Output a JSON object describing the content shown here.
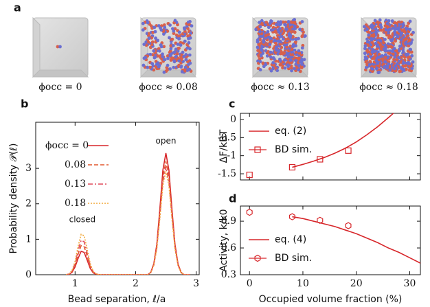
{
  "panel_a": {
    "label": "a",
    "captions": [
      "ϕocc = 0",
      "ϕocc ≈ 0.08",
      "ϕocc ≈ 0.13",
      "ϕocc ≈ 0.18"
    ]
  },
  "chart_data": [
    {
      "type": "line",
      "panel": "b",
      "xlabel": "Bead separation, ℓ/a",
      "ylabel": "Probability density 𝒫(ℓ)",
      "xlim": [
        0.35,
        3.05
      ],
      "ylim": [
        0,
        4.3
      ],
      "xticks": [
        1,
        2,
        3
      ],
      "yticks": [
        0,
        1,
        2,
        3
      ],
      "grid": false,
      "annotations": [
        "open",
        "closed"
      ],
      "x": [
        0.85,
        0.9,
        0.95,
        1.0,
        1.05,
        1.1,
        1.15,
        1.2,
        1.25,
        1.3,
        1.35,
        1.4,
        1.6,
        1.8,
        2.0,
        2.2,
        2.25,
        2.3,
        2.35,
        2.4,
        2.45,
        2.5,
        2.55,
        2.6,
        2.65,
        2.7,
        2.75,
        2.8,
        2.85,
        2.9
      ],
      "series": [
        {
          "name": "ϕocc = 0",
          "color": "#d7262a",
          "style": "solid",
          "values": [
            0,
            0.01,
            0.07,
            0.22,
            0.46,
            0.66,
            0.63,
            0.41,
            0.18,
            0.05,
            0.01,
            0,
            0,
            0,
            0,
            0,
            0.07,
            0.31,
            0.86,
            1.85,
            2.95,
            3.43,
            2.95,
            1.85,
            0.86,
            0.31,
            0.07,
            0,
            0,
            0
          ]
        },
        {
          "name": "0.08",
          "color": "#e2572b",
          "style": "dashed",
          "values": [
            0,
            0.02,
            0.09,
            0.27,
            0.58,
            0.82,
            0.79,
            0.52,
            0.23,
            0.07,
            0.02,
            0,
            0,
            0,
            0,
            0,
            0.06,
            0.29,
            0.8,
            1.73,
            2.75,
            3.2,
            2.75,
            1.73,
            0.8,
            0.29,
            0.06,
            0,
            0,
            0
          ]
        },
        {
          "name": "0.13",
          "color": "#e04a5a",
          "style": "dashdot",
          "values": [
            0,
            0.02,
            0.1,
            0.32,
            0.68,
            0.97,
            0.93,
            0.61,
            0.27,
            0.08,
            0.02,
            0,
            0,
            0,
            0,
            0,
            0.06,
            0.27,
            0.76,
            1.65,
            2.62,
            3.05,
            2.62,
            1.65,
            0.76,
            0.27,
            0.06,
            0,
            0,
            0
          ]
        },
        {
          "name": "0.18",
          "color": "#f2a93b",
          "style": "dotted",
          "values": [
            0,
            0.02,
            0.12,
            0.38,
            0.8,
            1.14,
            1.1,
            0.72,
            0.32,
            0.09,
            0.02,
            0,
            0,
            0,
            0,
            0,
            0.06,
            0.26,
            0.73,
            1.58,
            2.51,
            2.92,
            2.51,
            1.58,
            0.73,
            0.26,
            0.06,
            0,
            0,
            0
          ]
        }
      ]
    },
    {
      "type": "line",
      "panel": "c",
      "ylabel": "ΔF/kBT",
      "xlim": [
        -1.7,
        32
      ],
      "ylim": [
        -1.67,
        0.17
      ],
      "xticks": [
        0,
        10,
        20,
        30
      ],
      "xticklabels": false,
      "yticks": [
        0,
        -0.5,
        -1,
        -1.5
      ],
      "grid": false,
      "series": [
        {
          "name": "eq. (2)",
          "color": "#d7262a",
          "style": "solid",
          "x": [
            8,
            10,
            12,
            14,
            16,
            18,
            20,
            22,
            24,
            26,
            27
          ],
          "values": [
            -1.32,
            -1.24,
            -1.15,
            -1.05,
            -0.93,
            -0.79,
            -0.62,
            -0.42,
            -0.2,
            0.05,
            0.18
          ]
        },
        {
          "name": "BD sim.",
          "color": "#d7262a",
          "marker": "square",
          "x": [
            0,
            8,
            13.2,
            18.5
          ],
          "values": [
            -1.53,
            -1.32,
            -1.1,
            -0.86
          ]
        }
      ]
    },
    {
      "type": "line",
      "panel": "d",
      "xlabel": "Occupied volume fraction (%)",
      "ylabel": "Activity, k/k0",
      "xlim": [
        -1.7,
        32
      ],
      "ylim": [
        0.3,
        1.07
      ],
      "xticks": [
        0,
        10,
        20,
        30
      ],
      "yticks": [
        0.3,
        0.6,
        0.9
      ],
      "grid": false,
      "series": [
        {
          "name": "eq. (4)",
          "color": "#d7262a",
          "style": "solid",
          "x": [
            8,
            10,
            12,
            14,
            16,
            18,
            20,
            22,
            24,
            26,
            28,
            30,
            32
          ],
          "values": [
            0.95,
            0.93,
            0.9,
            0.87,
            0.84,
            0.8,
            0.76,
            0.71,
            0.66,
            0.6,
            0.55,
            0.49,
            0.43
          ]
        },
        {
          "name": "BD sim.",
          "color": "#d7262a",
          "marker": "hexagon",
          "x": [
            0,
            8,
            13.2,
            18.5
          ],
          "values": [
            1.0,
            0.95,
            0.91,
            0.85
          ]
        }
      ]
    }
  ]
}
